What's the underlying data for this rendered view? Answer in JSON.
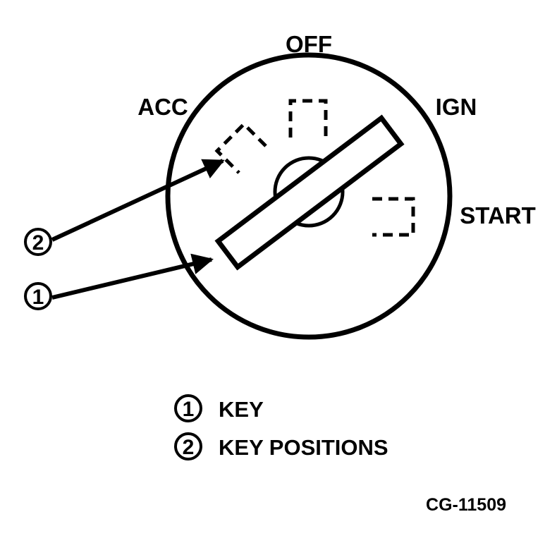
{
  "positions": {
    "off": "OFF",
    "acc": "ACC",
    "ign": "IGN",
    "start": "START"
  },
  "callouts": {
    "key_number": "1",
    "positions_number": "2"
  },
  "legend": [
    {
      "number": "1",
      "text": "KEY"
    },
    {
      "number": "2",
      "text": "KEY POSITIONS"
    }
  ],
  "figure_code": "CG-11509"
}
